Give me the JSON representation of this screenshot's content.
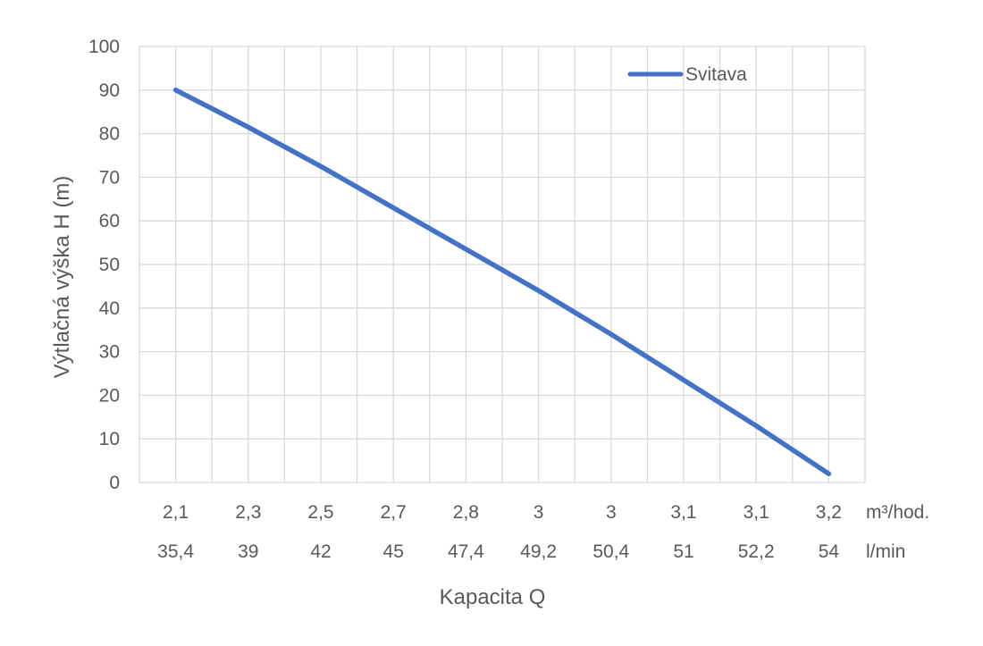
{
  "chart_data": {
    "type": "line",
    "categories_primary": [
      "2,1",
      "2,3",
      "2,5",
      "2,7",
      "2,8",
      "3",
      "3",
      "3,1",
      "3,1",
      "3,2"
    ],
    "categories_secondary": [
      "35,4",
      "39",
      "42",
      "45",
      "47,4",
      "49,2",
      "50,4",
      "51",
      "52,2",
      "54"
    ],
    "unit_primary": "m³/hod.",
    "unit_secondary": "l/min",
    "series": [
      {
        "name": "Svitava",
        "values": [
          90,
          81.5,
          72.5,
          63,
          53.5,
          44,
          34,
          23.5,
          13,
          2
        ],
        "color": "#4472C4"
      }
    ],
    "xlabel": "Kapacita Q",
    "ylabel": "Výtlačná výška H (m)",
    "ylim": [
      0,
      100
    ],
    "yticks": [
      0,
      10,
      20,
      30,
      40,
      50,
      60,
      70,
      80,
      90,
      100
    ],
    "grid": true,
    "legend": "top-right"
  }
}
